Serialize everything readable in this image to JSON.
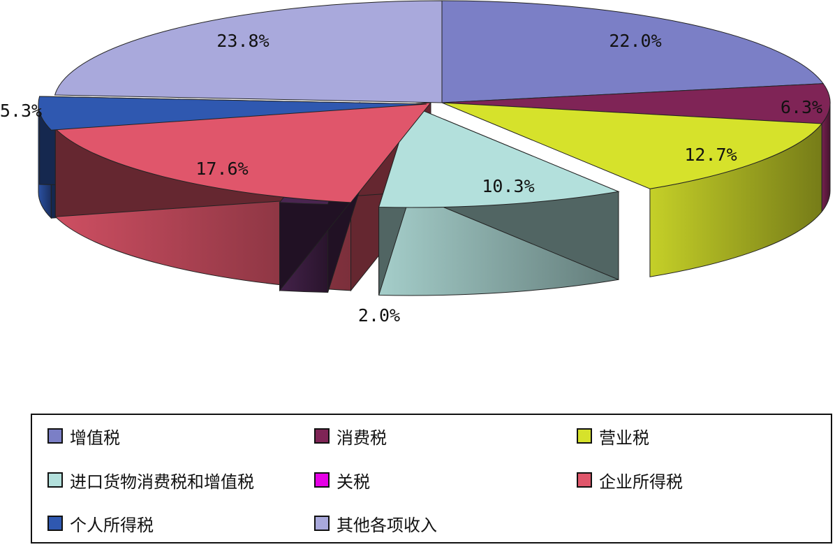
{
  "chart_data": {
    "type": "pie",
    "style": "3d-exploded",
    "title": "",
    "categories": [
      "增值税",
      "消费税",
      "营业税",
      "进口货物消费税和增值税",
      "关税",
      "企业所得税",
      "个人所得税",
      "其他各项收入"
    ],
    "values": [
      22.0,
      6.3,
      12.7,
      10.3,
      2.0,
      17.6,
      5.3,
      23.8
    ],
    "labels": [
      "22.0%",
      "6.3%",
      "12.7%",
      "10.3%",
      "2.0%",
      "17.6%",
      "5.3%",
      "23.8%"
    ],
    "unit": "%",
    "colors": [
      "#7b7fc6",
      "#7f2456",
      "#d6e22b",
      "#b3e0dc",
      "#4a2550",
      "#e0566b",
      "#2f58b0",
      "#a9a9dc"
    ],
    "legend_swatch_colors": [
      "#7b7fc6",
      "#7f2456",
      "#d6e22b",
      "#b3e0dc",
      "#e600e6",
      "#e0566b",
      "#2f58b0",
      "#a9a9dc"
    ],
    "legend": {
      "position": "bottom",
      "columns": 3
    }
  }
}
